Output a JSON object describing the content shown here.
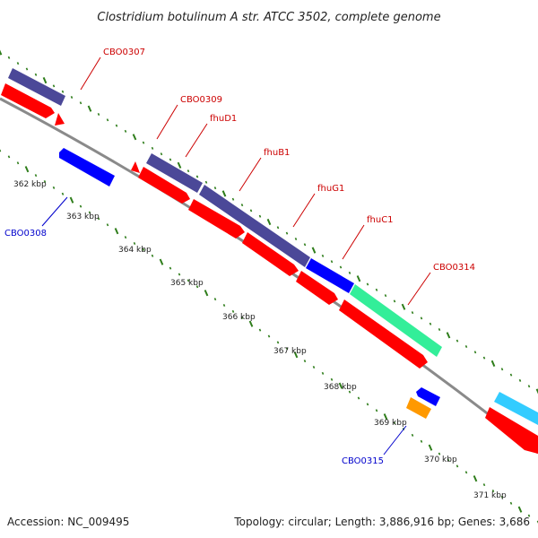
{
  "title": "Clostridium botulinum A str. ATCC 3502, complete genome",
  "accession": "Accession: NC_009495",
  "topology": "Topology: circular; Length: 3,886,916 bp; Genes: 3,686",
  "colors": {
    "backbone": "#8a8a8a",
    "tick": "#2e7d1a",
    "gene_label_forward": "#cc0000",
    "gene_label_reverse": "#0000cc",
    "cds": "#ff0000",
    "gene_slate": "#4b4898",
    "gene_blue": "#0000ff",
    "gene_green": "#33ee99",
    "gene_orange": "#ff9900",
    "gene_cyan": "#33ccff"
  },
  "kbp_labels": [
    "362 kbp",
    "363 kbp",
    "364 kbp",
    "365 kbp",
    "366 kbp",
    "367 kbp",
    "368 kbp",
    "369 kbp",
    "370 kbp",
    "371 kbp"
  ],
  "gene_labels_forward": [
    "CBO0307",
    "CBO0309",
    "fhuD1",
    "fhuB1",
    "fhuG1",
    "fhuC1",
    "CBO0314"
  ],
  "gene_labels_reverse": [
    "CBO0308",
    "CBO0315"
  ]
}
